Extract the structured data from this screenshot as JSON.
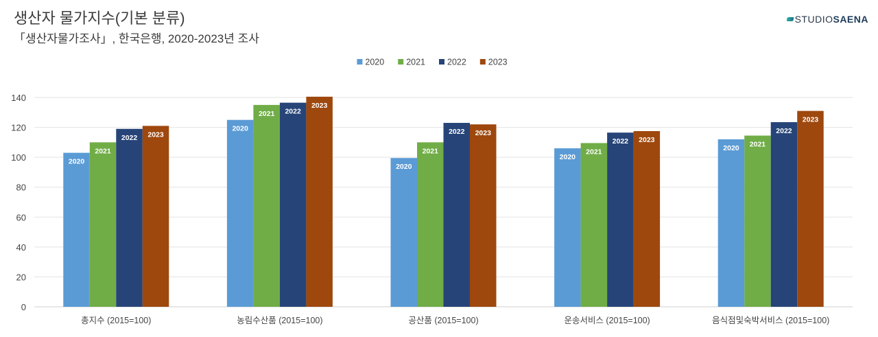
{
  "title": "생산자 물가지수(기본 분류)",
  "subtitle": "「생산자물가조사」, 한국은행, 2020-2023년 조사",
  "brand": {
    "studio": "STUDIO",
    "saena": "SAENA"
  },
  "chart_data": {
    "type": "bar",
    "categories": [
      "총지수 (2015=100)",
      "농림수산품 (2015=100)",
      "공산품 (2015=100)",
      "운송서비스 (2015=100)",
      "음식점및숙박서비스 (2015=100)"
    ],
    "series": [
      {
        "name": "2020",
        "color": "#5b9bd5",
        "values": [
          103,
          125,
          99.5,
          106,
          112
        ]
      },
      {
        "name": "2021",
        "color": "#70ad47",
        "values": [
          110,
          135,
          110,
          109.5,
          114.5
        ]
      },
      {
        "name": "2022",
        "color": "#264478",
        "values": [
          119,
          136.5,
          123,
          116.5,
          123.5
        ]
      },
      {
        "name": "2023",
        "color": "#9e480e",
        "values": [
          121,
          140.5,
          122,
          117.5,
          131
        ]
      }
    ],
    "ylim": [
      0,
      140
    ],
    "yticks": [
      0,
      20,
      40,
      60,
      80,
      100,
      120,
      140
    ],
    "grid": true,
    "legend": "top-center",
    "data_labels": "series-name"
  }
}
